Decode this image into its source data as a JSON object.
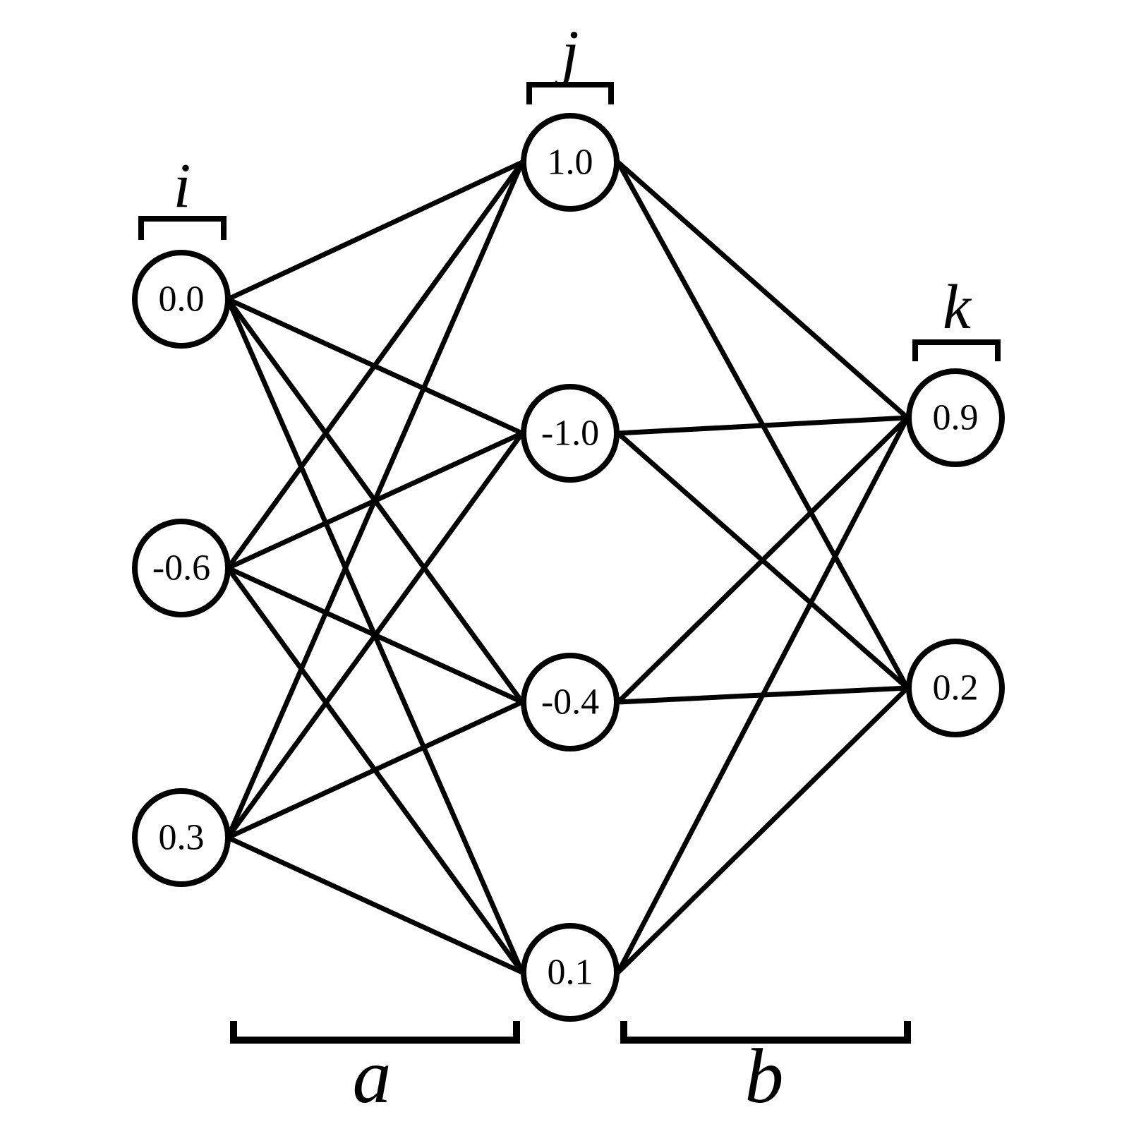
{
  "colors": {
    "stroke": "#000000",
    "background": "#ffffff"
  },
  "layers": {
    "i": {
      "label": "i",
      "values": [
        "0.0",
        "-0.6",
        "0.3"
      ]
    },
    "j": {
      "label": "j",
      "values": [
        "1.0",
        "-1.0",
        "-0.4",
        "0.1"
      ]
    },
    "k": {
      "label": "k",
      "values": [
        "0.9",
        "0.2"
      ]
    }
  },
  "weight_groups": {
    "a": {
      "label": "a",
      "between": [
        "i",
        "j"
      ]
    },
    "b": {
      "label": "b",
      "between": [
        "j",
        "k"
      ]
    }
  }
}
